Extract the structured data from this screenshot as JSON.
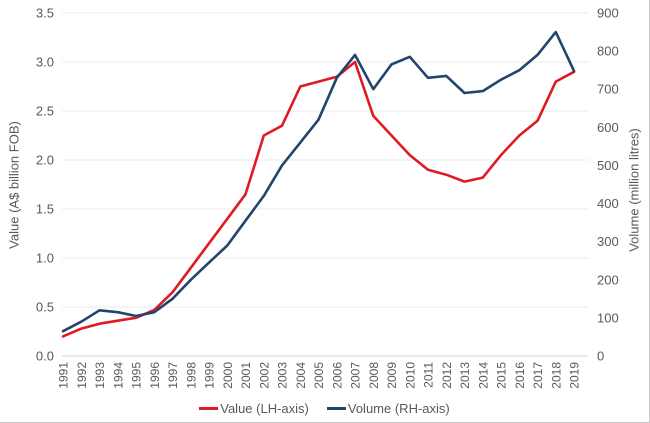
{
  "chart_data": {
    "type": "line",
    "x": [
      "1991",
      "1992",
      "1993",
      "1994",
      "1995",
      "1996",
      "1997",
      "1998",
      "1999",
      "2000",
      "2001",
      "2002",
      "2003",
      "2004",
      "2005",
      "2006",
      "2007",
      "2008",
      "2009",
      "2010",
      "2011",
      "2012",
      "2013",
      "2014",
      "2015",
      "2016",
      "2017",
      "2018",
      "2019"
    ],
    "series": [
      {
        "name": "Value (LH-axis)",
        "axis": "left",
        "color": "#e01a22",
        "values": [
          0.2,
          0.28,
          0.33,
          0.36,
          0.39,
          0.47,
          0.65,
          0.9,
          1.15,
          1.4,
          1.65,
          2.25,
          2.35,
          2.75,
          2.8,
          2.85,
          3.0,
          2.45,
          2.25,
          2.05,
          1.9,
          1.85,
          1.78,
          1.82,
          2.05,
          2.25,
          2.4,
          2.8,
          2.9
        ]
      },
      {
        "name": "Volume (RH-axis)",
        "axis": "right",
        "color": "#21456d",
        "values": [
          65,
          90,
          120,
          115,
          105,
          115,
          150,
          200,
          245,
          290,
          355,
          420,
          500,
          560,
          620,
          730,
          790,
          700,
          765,
          785,
          730,
          735,
          690,
          695,
          725,
          750,
          790,
          850,
          748
        ]
      }
    ],
    "left_axis": {
      "label": "Value (A$ billion FOB)",
      "min": 0,
      "max": 3.5,
      "step": 0.5,
      "ticks": [
        "0.0",
        "0.5",
        "1.0",
        "1.5",
        "2.0",
        "2.5",
        "3.0",
        "3.5"
      ]
    },
    "right_axis": {
      "label": "Volume (million litres)",
      "min": 0,
      "max": 900,
      "step": 100,
      "ticks": [
        "0",
        "100",
        "200",
        "300",
        "400",
        "500",
        "600",
        "700",
        "800",
        "900"
      ]
    },
    "grid": true,
    "legend_position": "bottom",
    "colors": {
      "gridline": "#ebebeb",
      "axis_line": "#d5d5d5",
      "tick_text": "#595959"
    }
  }
}
